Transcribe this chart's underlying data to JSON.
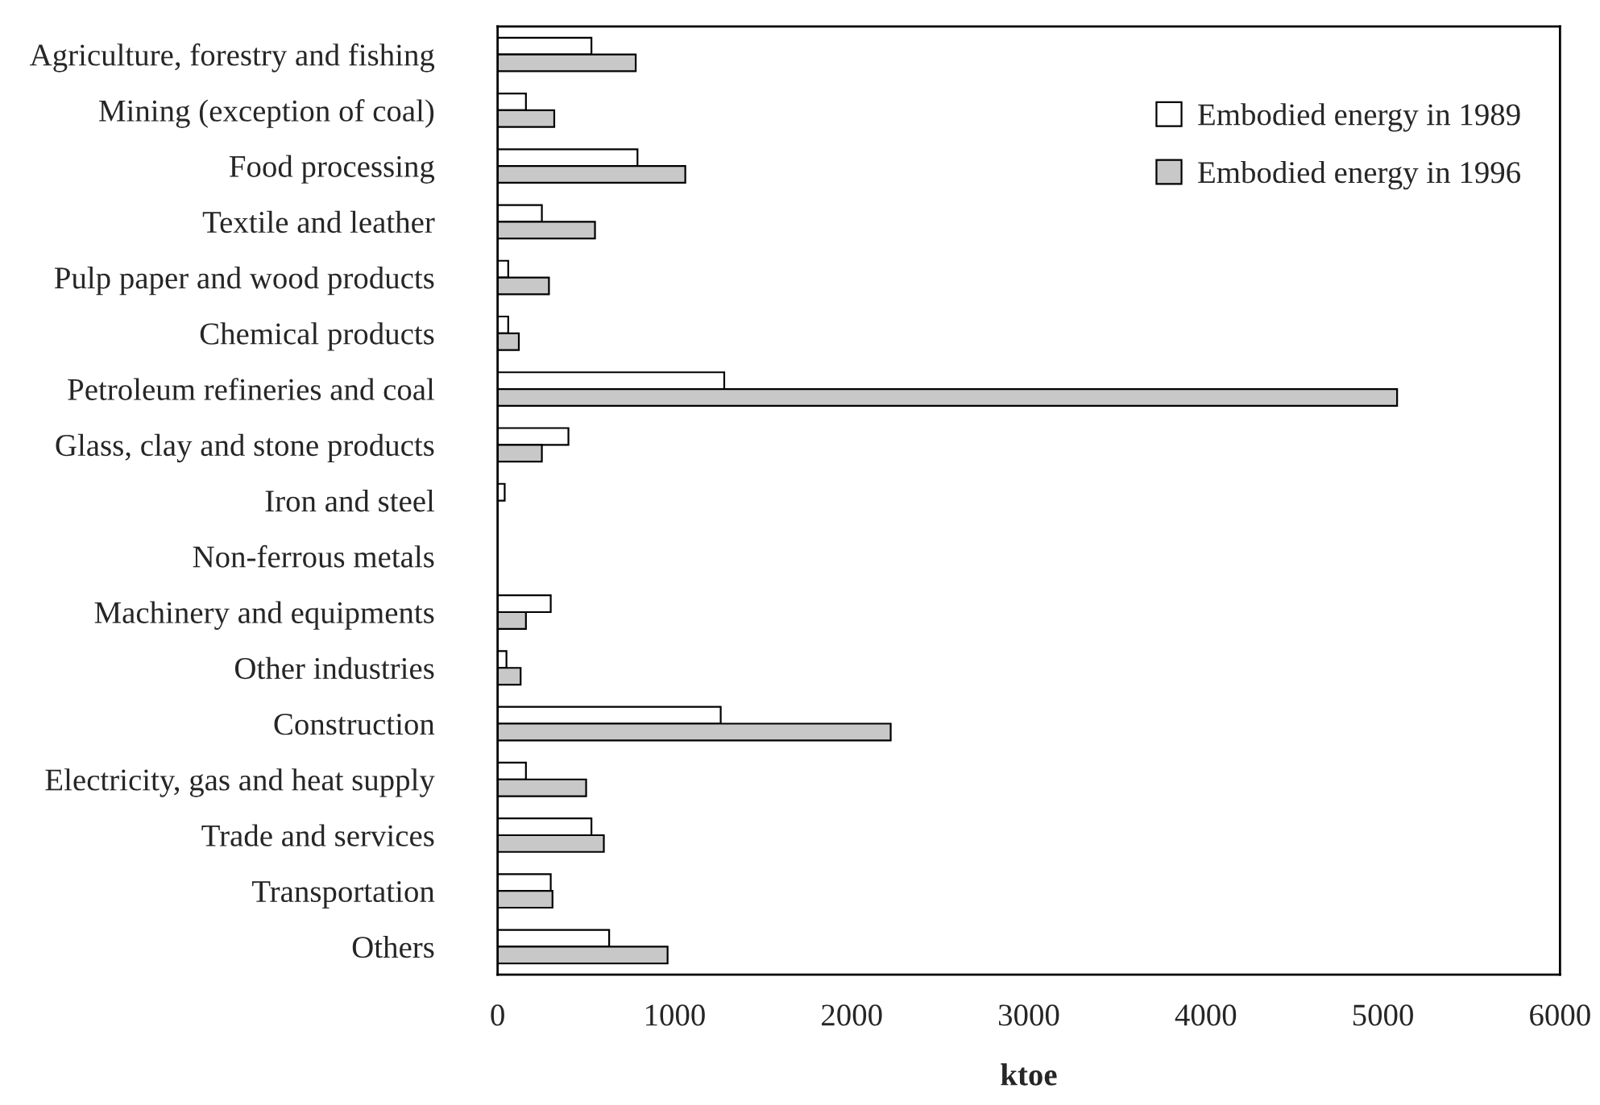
{
  "chart_data": {
    "type": "bar",
    "orientation": "horizontal",
    "xlabel": "ktoe",
    "categories": [
      "Agriculture, forestry and fishing",
      "Mining (exception of coal)",
      "Food processing",
      "Textile and leather",
      "Pulp paper and wood products",
      "Chemical products",
      "Petroleum refineries and coal",
      "Glass, clay and stone products",
      "Iron and steel",
      "Non-ferrous metals",
      "Machinery and equipments",
      "Other industries",
      "Construction",
      "Electricity, gas and heat supply",
      "Trade and services",
      "Transportation",
      "Others"
    ],
    "series": [
      {
        "name": "Embodied energy in 1989",
        "color": "#ffffff",
        "values": [
          530,
          160,
          790,
          250,
          60,
          60,
          1280,
          400,
          40,
          null,
          300,
          50,
          1260,
          160,
          530,
          300,
          630
        ]
      },
      {
        "name": "Embodied energy in 1996",
        "color": "#c8c8c8",
        "values": [
          780,
          320,
          1060,
          550,
          290,
          120,
          5080,
          250,
          null,
          null,
          160,
          130,
          2220,
          500,
          600,
          310,
          960
        ]
      }
    ],
    "xlim": [
      0,
      6000
    ],
    "xticks": [
      0,
      1000,
      2000,
      3000,
      4000,
      5000,
      6000
    ],
    "grid": false,
    "legend": "top right"
  }
}
